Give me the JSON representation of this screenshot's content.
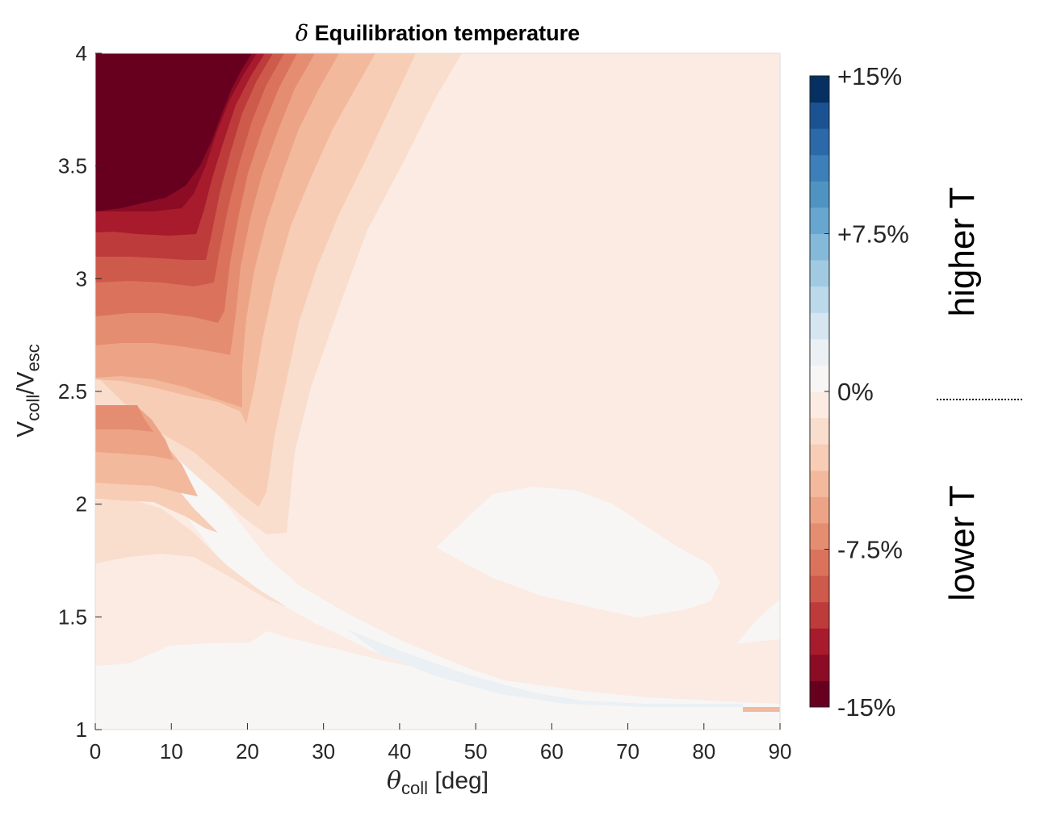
{
  "title": {
    "symbol": "δ",
    "text": "Equilibration temperature"
  },
  "xlabel": {
    "symbol": "θ",
    "sub": "coll",
    "unit": "[deg]"
  },
  "ylabel": {
    "v1": "V",
    "sub1": "coll",
    "slash": "/V",
    "sub2": "esc"
  },
  "colorbar": {
    "tick_labels": [
      "+15%",
      "+7.5%",
      "0%",
      "-7.5%",
      "-15%"
    ],
    "tick_values": [
      15,
      7.5,
      0,
      -7.5,
      -15
    ],
    "levels": 24,
    "range": [
      -15,
      15
    ],
    "colors_low_to_high": [
      "#67001f",
      "#8c0c25",
      "#a71b2d",
      "#bd3b3b",
      "#cd5a4b",
      "#db735c",
      "#e58d71",
      "#eda486",
      "#f3b99d",
      "#f7cdb5",
      "#f9ddcd",
      "#fbebe3",
      "#f7f6f5",
      "#eaf0f4",
      "#d5e6f0",
      "#bcd9ea",
      "#a1cae2",
      "#84b9d9",
      "#67a7cf",
      "#4f93c3",
      "#3d7fb8",
      "#2b69a8",
      "#1b5292",
      "#053061"
    ],
    "side_label_high": "higher T",
    "side_label_low": "lower T"
  },
  "chart_data": {
    "type": "heatmap",
    "title": "δ Equilibration temperature",
    "xlabel": "θcoll [deg]",
    "ylabel": "Vcoll/Vesc",
    "xlim": [
      0,
      90
    ],
    "ylim": [
      1,
      4
    ],
    "x_ticks": [
      0,
      10,
      20,
      30,
      40,
      50,
      60,
      70,
      80,
      90
    ],
    "y_ticks": [
      1,
      1.5,
      2,
      2.5,
      3,
      3.5,
      4
    ],
    "y_tick_labels": [
      "1",
      "1.5",
      "2",
      "2.5",
      "3",
      "3.5",
      "4"
    ],
    "colorbar_range_percent": [
      -15,
      15
    ],
    "regions": [
      {
        "name": "strongest cooling (about -15%)",
        "value": -15,
        "theta_range": [
          0,
          22
        ],
        "v_range": [
          3.3,
          4
        ]
      },
      {
        "name": "moderate cooling bands",
        "value_range": [
          -13.75,
          -3.75
        ],
        "theta_range": [
          0,
          48
        ],
        "v_range": [
          1.7,
          4
        ]
      },
      {
        "name": "weak cooling background",
        "value": -1.25,
        "theta_range": [
          0,
          90
        ],
        "v_range": [
          1.05,
          4
        ]
      },
      {
        "name": "neutral region (about 0%)",
        "value": 0,
        "theta_range": [
          45,
          82
        ],
        "v_range": [
          1.5,
          2.05
        ]
      },
      {
        "name": "neutral low-velocity region",
        "value": 0,
        "theta_range": [
          0,
          90
        ],
        "v_range": [
          1,
          1.3
        ]
      }
    ]
  }
}
